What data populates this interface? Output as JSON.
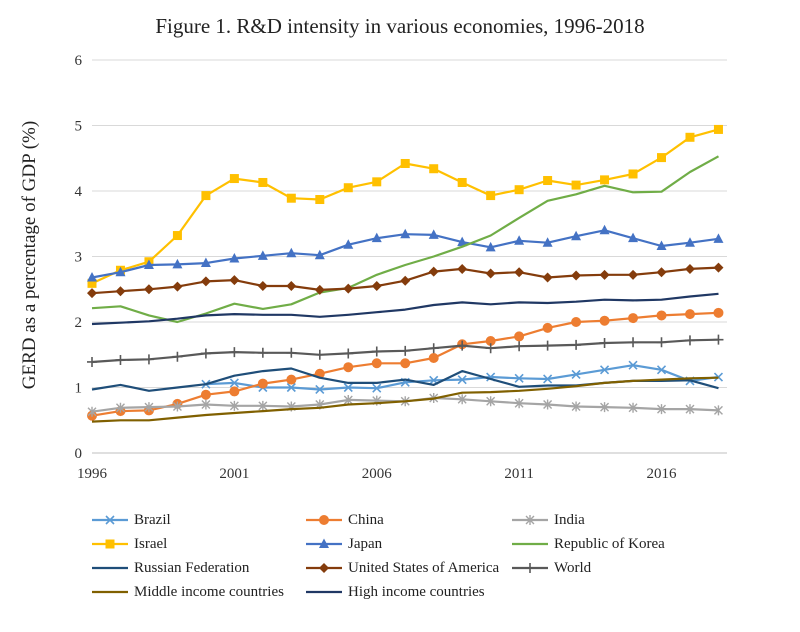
{
  "chart_data": {
    "type": "line",
    "title": "Figure 1. R&D intensity in various economies, 1996-2018",
    "ylabel": "GERD as a percentage of GDP (%)",
    "xlabel": "",
    "x": [
      1996,
      1997,
      1998,
      1999,
      2000,
      2001,
      2002,
      2003,
      2004,
      2005,
      2006,
      2007,
      2008,
      2009,
      2010,
      2011,
      2012,
      2013,
      2014,
      2015,
      2016,
      2017,
      2018
    ],
    "xticks": [
      "1996",
      "2001",
      "2006",
      "2011",
      "2016"
    ],
    "yticks": [
      "0",
      "1",
      "2",
      "3",
      "4",
      "5",
      "6"
    ],
    "xlim": [
      1996,
      2018.3
    ],
    "ylim": [
      0,
      6
    ],
    "grid": "horizontal",
    "legend_position": "bottom",
    "series": [
      {
        "name": "Brazil",
        "color": "#5b9bd5",
        "marker": "x",
        "values": [
          null,
          null,
          null,
          null,
          1.05,
          1.07,
          1.0,
          1.0,
          0.97,
          1.0,
          0.99,
          1.08,
          1.11,
          1.12,
          1.16,
          1.14,
          1.13,
          1.2,
          1.27,
          1.34,
          1.27,
          1.1,
          1.16
        ]
      },
      {
        "name": "China",
        "color": "#ed7d31",
        "marker": "circle",
        "values": [
          0.57,
          0.64,
          0.65,
          0.75,
          0.89,
          0.94,
          1.06,
          1.12,
          1.21,
          1.31,
          1.37,
          1.37,
          1.45,
          1.66,
          1.71,
          1.78,
          1.91,
          2.0,
          2.02,
          2.06,
          2.1,
          2.12,
          2.14
        ]
      },
      {
        "name": "India",
        "color": "#a5a5a5",
        "marker": "star",
        "values": [
          0.63,
          0.69,
          0.7,
          0.71,
          0.74,
          0.72,
          0.72,
          0.71,
          0.74,
          0.81,
          0.8,
          0.79,
          0.84,
          0.82,
          0.79,
          0.76,
          0.74,
          0.71,
          0.7,
          0.69,
          0.67,
          0.67,
          0.65
        ]
      },
      {
        "name": "Israel",
        "color": "#ffc000",
        "marker": "square",
        "values": [
          2.59,
          2.79,
          2.92,
          3.32,
          3.93,
          4.19,
          4.13,
          3.89,
          3.87,
          4.05,
          4.14,
          4.42,
          4.34,
          4.13,
          3.93,
          4.02,
          4.16,
          4.09,
          4.17,
          4.26,
          4.51,
          4.82,
          4.94
        ]
      },
      {
        "name": "Japan",
        "color": "#4472c4",
        "marker": "triangle",
        "values": [
          2.68,
          2.76,
          2.87,
          2.88,
          2.9,
          2.97,
          3.01,
          3.05,
          3.02,
          3.18,
          3.28,
          3.34,
          3.33,
          3.22,
          3.14,
          3.24,
          3.21,
          3.31,
          3.4,
          3.28,
          3.16,
          3.21,
          3.27
        ]
      },
      {
        "name": "Republic of Korea",
        "color": "#70ad47",
        "marker": "none",
        "values": [
          2.21,
          2.24,
          2.1,
          2.0,
          2.13,
          2.28,
          2.2,
          2.27,
          2.45,
          2.52,
          2.72,
          2.87,
          3.0,
          3.15,
          3.32,
          3.59,
          3.85,
          3.95,
          4.08,
          3.98,
          3.99,
          4.29,
          4.53
        ]
      },
      {
        "name": "Russian Federation",
        "color": "#1f4e79",
        "marker": "none",
        "values": [
          0.97,
          1.04,
          0.95,
          1.0,
          1.05,
          1.18,
          1.25,
          1.29,
          1.15,
          1.07,
          1.07,
          1.12,
          1.04,
          1.25,
          1.13,
          1.01,
          1.03,
          1.03,
          1.07,
          1.1,
          1.1,
          1.11,
          0.99
        ]
      },
      {
        "name": "United States of America",
        "color": "#843c0c",
        "marker": "diamond",
        "values": [
          2.44,
          2.47,
          2.5,
          2.54,
          2.62,
          2.64,
          2.55,
          2.55,
          2.49,
          2.51,
          2.55,
          2.63,
          2.77,
          2.81,
          2.74,
          2.76,
          2.68,
          2.71,
          2.72,
          2.72,
          2.76,
          2.81,
          2.83
        ]
      },
      {
        "name": "World",
        "color": "#595959",
        "marker": "plus",
        "values": [
          1.39,
          1.42,
          1.43,
          1.47,
          1.52,
          1.54,
          1.53,
          1.53,
          1.5,
          1.52,
          1.55,
          1.56,
          1.6,
          1.64,
          1.6,
          1.63,
          1.64,
          1.65,
          1.68,
          1.69,
          1.69,
          1.72,
          1.73
        ]
      },
      {
        "name": "Middle income countries",
        "color": "#806000",
        "marker": "none",
        "values": [
          0.48,
          0.5,
          0.5,
          0.54,
          0.58,
          0.61,
          0.64,
          0.67,
          0.69,
          0.74,
          0.76,
          0.79,
          0.83,
          0.92,
          0.93,
          0.95,
          0.98,
          1.02,
          1.07,
          1.1,
          1.12,
          1.14,
          1.15
        ]
      },
      {
        "name": "High income countries",
        "color": "#203864",
        "marker": "none",
        "values": [
          1.97,
          1.99,
          2.01,
          2.05,
          2.1,
          2.12,
          2.11,
          2.11,
          2.08,
          2.11,
          2.15,
          2.19,
          2.26,
          2.3,
          2.27,
          2.3,
          2.29,
          2.31,
          2.34,
          2.33,
          2.34,
          2.39,
          2.43
        ]
      }
    ]
  }
}
